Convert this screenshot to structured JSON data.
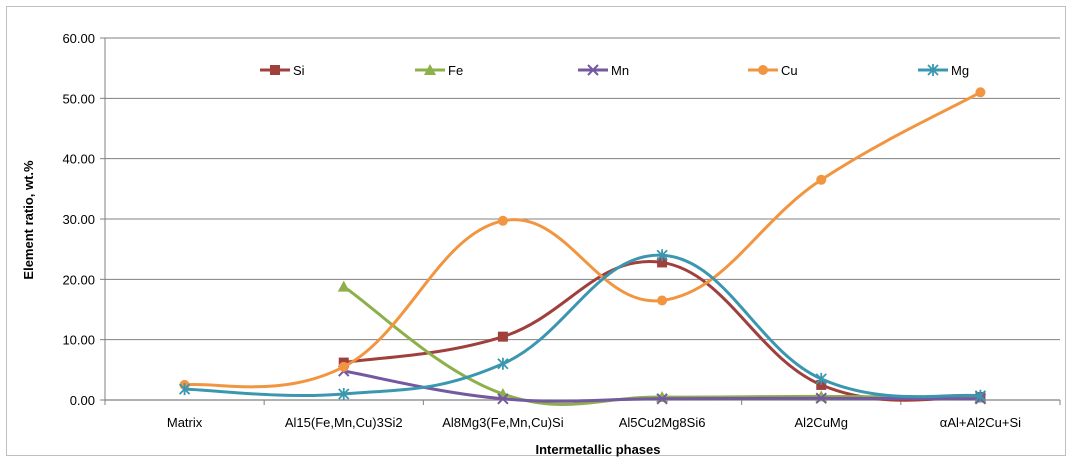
{
  "chart_data": {
    "type": "line",
    "xlabel": "Intermetallic phases",
    "ylabel": "Element ratio, wt.%",
    "ylim": [
      0,
      60
    ],
    "yticks": [
      "0.00",
      "10.00",
      "20.00",
      "30.00",
      "40.00",
      "50.00",
      "60.00"
    ],
    "categories": [
      "Matrix",
      "Al15(Fe,Mn,Cu)3Si2",
      "Al8Mg3(Fe,Mn,Cu)Si",
      "Al5Cu2Mg8Si6",
      "Al2CuMg",
      "αAl+Al2Cu+Si"
    ],
    "grid": "horizontal",
    "legend_position": "top",
    "smooth": true,
    "series": [
      {
        "name": "Si",
        "color": "#A0403C",
        "marker": "square",
        "values": [
          null,
          6.2,
          10.5,
          22.8,
          2.5,
          0.5
        ]
      },
      {
        "name": "Fe",
        "color": "#8DB04A",
        "marker": "triangle",
        "values": [
          null,
          18.8,
          1.0,
          0.5,
          0.6,
          0.4
        ]
      },
      {
        "name": "Mn",
        "color": "#7458A0",
        "marker": "x",
        "values": [
          null,
          4.8,
          0.2,
          0.2,
          0.3,
          0.2
        ]
      },
      {
        "name": "Cu",
        "color": "#F29540",
        "marker": "circle",
        "values": [
          2.5,
          5.5,
          29.7,
          16.5,
          36.5,
          51.0
        ]
      },
      {
        "name": "Mg",
        "color": "#3B97B0",
        "marker": "star",
        "values": [
          1.8,
          1.0,
          6.0,
          24.0,
          3.5,
          0.7
        ]
      }
    ]
  }
}
